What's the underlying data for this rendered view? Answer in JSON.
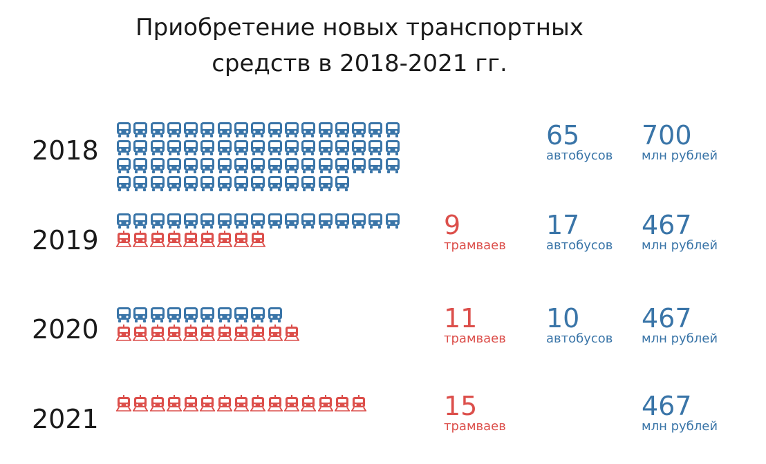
{
  "colors": {
    "bus": "#3a75a8",
    "tram": "#dc4f4b"
  },
  "title": {
    "line1": "Приобретение новых транспортных",
    "line2": "средств в 2018-2021 гг."
  },
  "chart_data": {
    "type": "table",
    "title": "Приобретение новых транспортных средств в 2018-2021 гг.",
    "rows": [
      {
        "year": "2018",
        "trams": null,
        "buses": 65,
        "budget": 700,
        "trams_text": "",
        "trams_label": "",
        "buses_text": "65",
        "buses_label": "автобусов",
        "budget_text": "700",
        "budget_label": "млн рублей"
      },
      {
        "year": "2019",
        "trams": 9,
        "buses": 17,
        "budget": 467,
        "trams_text": "9",
        "trams_label": "трамваев",
        "buses_text": "17",
        "buses_label": "автобусов",
        "budget_text": "467",
        "budget_label": "млн рублей"
      },
      {
        "year": "2020",
        "trams": 11,
        "buses": 10,
        "budget": 467,
        "trams_text": "11",
        "trams_label": "трамваев",
        "buses_text": "10",
        "buses_label": "автобусов",
        "budget_text": "467",
        "budget_label": "млн рублей"
      },
      {
        "year": "2021",
        "trams": 15,
        "buses": null,
        "budget": 467,
        "trams_text": "15",
        "trams_label": "трамваев",
        "buses_text": "",
        "buses_label": "",
        "budget_text": "467",
        "budget_label": "млн рублей"
      }
    ]
  }
}
